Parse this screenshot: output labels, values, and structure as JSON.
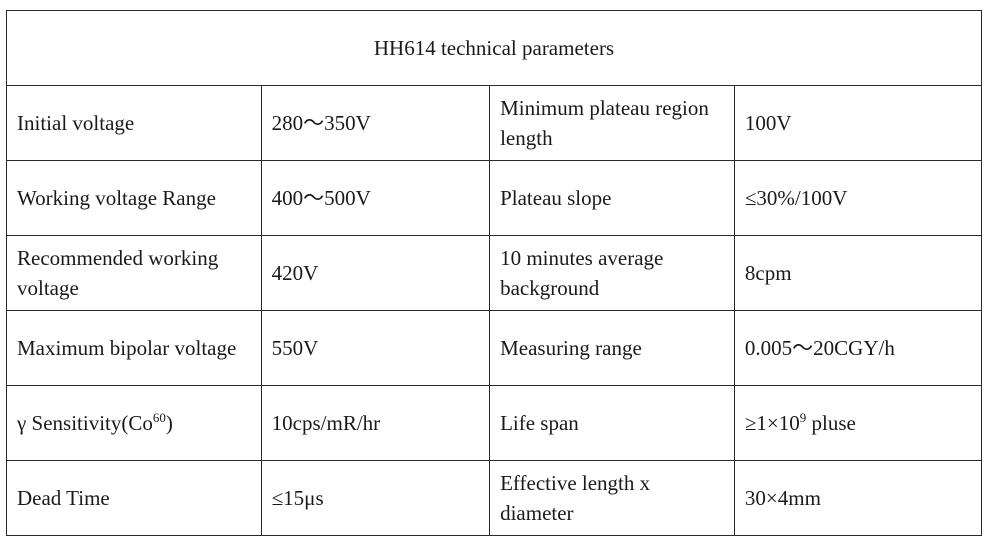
{
  "table": {
    "title": "HH614 technical parameters",
    "rows": [
      {
        "param_left": "Initial voltage",
        "value_left": "280～350V",
        "param_right": "Minimum plateau region length",
        "value_right": "100V"
      },
      {
        "param_left": "Working voltage Range",
        "value_left": "400～500V",
        "param_right": "Plateau slope",
        "value_right": "≤30%/100V"
      },
      {
        "param_left": "Recommended working voltage",
        "value_left": "420V",
        "param_right": "10 minutes average background",
        "value_right": "8cpm"
      },
      {
        "param_left": "Maximum bipolar voltage",
        "value_left": "550V",
        "param_right": "Measuring range",
        "value_right": "0.005～20CGY/h"
      },
      {
        "param_left_text": "γ Sensitivity(Co",
        "param_left_sup": "60",
        "param_left_end": ")",
        "value_left": "10cps/mR/hr",
        "param_right": "Life span",
        "value_right_text": "≥1×10",
        "value_right_sup": "9",
        "value_right_end": " pluse"
      },
      {
        "param_left": "Dead Time",
        "value_left": "≤15μs",
        "param_right": "Effective length x diameter",
        "value_right": "30×4mm"
      }
    ]
  }
}
